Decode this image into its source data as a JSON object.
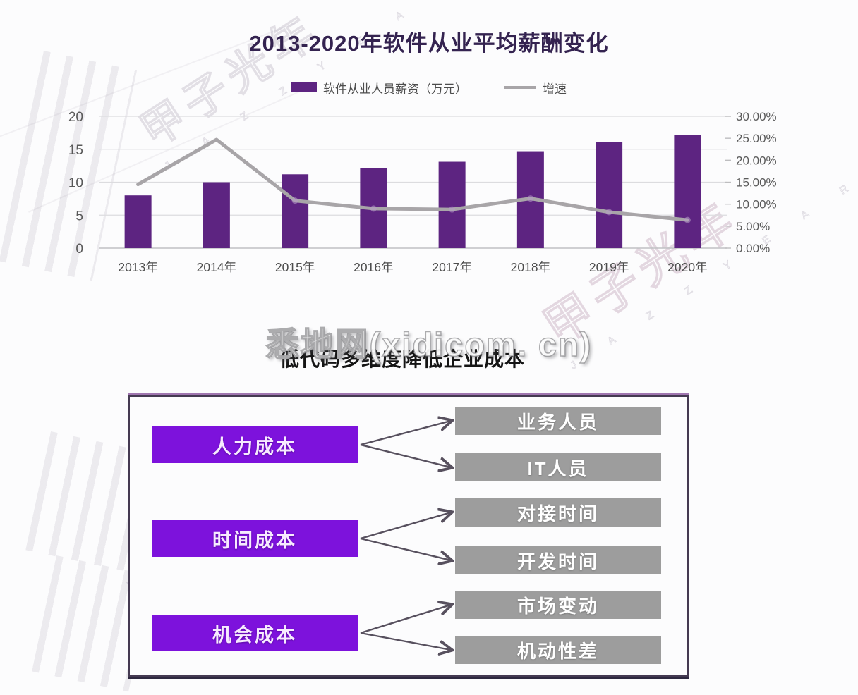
{
  "page": {
    "background": "#fcfcfd"
  },
  "watermarks": {
    "site": "悉地网(xidicom. cn)",
    "brand": "甲子光年",
    "brand_latin": "J A Z Z Y E A R"
  },
  "chart": {
    "title": "2013-2020年软件从业平均薪酬变化",
    "legend": [
      {
        "label": "软件从业人员薪资（万元）",
        "swatch": "bar",
        "color": "#5d2481"
      },
      {
        "label": "增速",
        "swatch": "line",
        "color": "#a8a5a8"
      }
    ]
  },
  "chart_data": {
    "type": "bar",
    "subtype": "combo-bar-line-dual-axis",
    "title": "2013-2020年软件从业平均薪酬变化",
    "categories": [
      "2013年",
      "2014年",
      "2015年",
      "2016年",
      "2017年",
      "2018年",
      "2019年",
      "2020年"
    ],
    "series": [
      {
        "name": "软件从业人员薪资（万元）",
        "type": "bar",
        "axis": "left",
        "color": "#5d2481",
        "values": [
          8.0,
          10.0,
          11.2,
          12.1,
          13.1,
          14.7,
          16.1,
          17.2
        ]
      },
      {
        "name": "增速",
        "type": "line",
        "axis": "right",
        "color": "#a8a5a8",
        "unit": "%",
        "values": [
          14.5,
          24.7,
          10.8,
          9.0,
          8.8,
          11.3,
          8.2,
          6.4
        ]
      }
    ],
    "left_axis": {
      "ticks": [
        "20",
        "15",
        "10",
        "5",
        "0"
      ],
      "min": 0,
      "max": 20
    },
    "right_axis": {
      "ticks": [
        "30.00%",
        "25.00%",
        "20.00%",
        "15.00%",
        "10.00%",
        "5.00%",
        "0.00%"
      ],
      "min": 0,
      "max": 30
    },
    "grid": "horizontal",
    "legend_position": "top",
    "xlabel": "",
    "ylabel_left": "万元",
    "ylabel_right": "增速"
  },
  "diagram": {
    "title": "低代码多维度降低企业成本",
    "source_color": "#7d12dc",
    "target_color": "#9d9d9d",
    "arrow_color": "#57505e",
    "groups": [
      {
        "source": "人力成本",
        "targets": [
          "业务人员",
          "IT人员"
        ]
      },
      {
        "source": "时间成本",
        "targets": [
          "对接时间",
          "开发时间"
        ]
      },
      {
        "source": "机会成本",
        "targets": [
          "市场变动",
          "机动性差"
        ]
      }
    ]
  }
}
